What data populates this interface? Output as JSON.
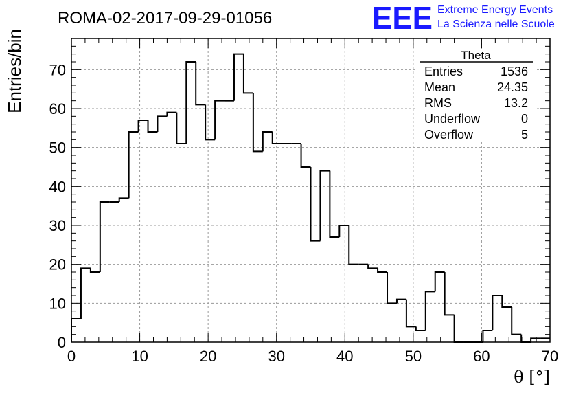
{
  "header": {
    "run_title": "ROMA-02-2017-09-29-01056",
    "logo_text": "EEE",
    "logo_line1": "Extreme Energy Events",
    "logo_line2": "La Scienza nelle Scuole",
    "logo_color": "#1a1aff"
  },
  "stats_box": {
    "title": "Theta",
    "rows": [
      {
        "label": "Entries",
        "value": "1536"
      },
      {
        "label": "Mean",
        "value": "24.35"
      },
      {
        "label": "RMS",
        "value": "13.2"
      },
      {
        "label": "Underflow",
        "value": "0"
      },
      {
        "label": "Overflow",
        "value": "5"
      }
    ]
  },
  "chart_data": {
    "type": "histogram",
    "xlabel": "θ [°]",
    "ylabel": "Entries/bin",
    "xlim": [
      0,
      70
    ],
    "ylim": [
      0,
      78
    ],
    "bin_width": 1.4,
    "bin_start": 0,
    "values": [
      6,
      19,
      18,
      36,
      36,
      37,
      54,
      57,
      54,
      58,
      59,
      51,
      72,
      61,
      52,
      62,
      62,
      74,
      64,
      49,
      54,
      51,
      51,
      51,
      45,
      26,
      44,
      27,
      30,
      20,
      20,
      19,
      18,
      10,
      11,
      4,
      3,
      13,
      18,
      7,
      0,
      0,
      0,
      3,
      12,
      9,
      2,
      0,
      1,
      1
    ],
    "x_ticks": [
      "0",
      "10",
      "20",
      "30",
      "40",
      "50",
      "60",
      "70"
    ],
    "y_ticks": [
      "0",
      "10",
      "20",
      "30",
      "40",
      "50",
      "60",
      "70"
    ],
    "grid": true,
    "line_color": "#000000"
  }
}
